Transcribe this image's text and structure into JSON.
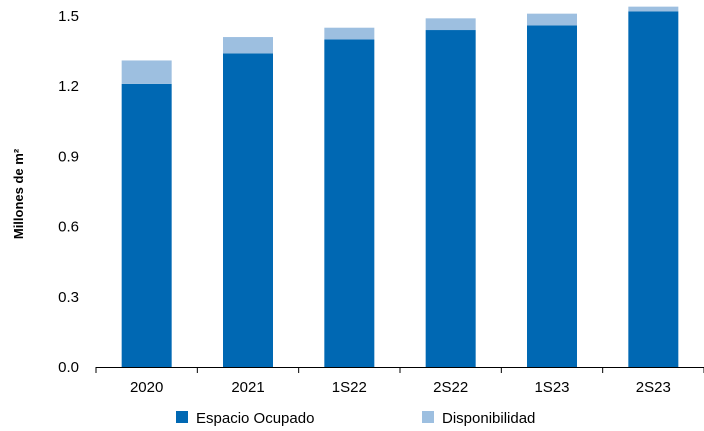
{
  "chart_data": {
    "type": "bar",
    "stacked": true,
    "categories": [
      "2020",
      "2021",
      "1S22",
      "2S22",
      "1S23",
      "2S23"
    ],
    "series": [
      {
        "name": "Espacio Ocupado",
        "values": [
          1.21,
          1.34,
          1.4,
          1.44,
          1.46,
          1.52
        ],
        "color": "#0068B3"
      },
      {
        "name": "Disponibilidad",
        "values": [
          0.1,
          0.07,
          0.05,
          0.05,
          0.05,
          0.02
        ],
        "color": "#9DBFE0"
      }
    ],
    "ylabel": "Millones de m²",
    "xlabel": "",
    "ylim": [
      0,
      1.5
    ],
    "yticks": [
      "0.0",
      "0.3",
      "0.6",
      "0.9",
      "1.2",
      "1.5"
    ],
    "grid": false,
    "legend_position": "bottom"
  }
}
